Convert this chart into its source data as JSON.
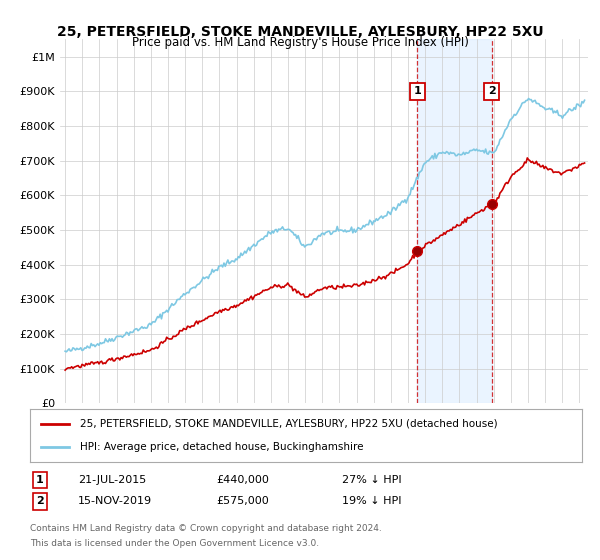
{
  "title": "25, PETERSFIELD, STOKE MANDEVILLE, AYLESBURY, HP22 5XU",
  "subtitle": "Price paid vs. HM Land Registry's House Price Index (HPI)",
  "ylabel_ticks": [
    "£0",
    "£100K",
    "£200K",
    "£300K",
    "£400K",
    "£500K",
    "£600K",
    "£700K",
    "£800K",
    "£900K",
    "£1M"
  ],
  "ytick_vals": [
    0,
    100000,
    200000,
    300000,
    400000,
    500000,
    600000,
    700000,
    800000,
    900000,
    1000000
  ],
  "ylim": [
    0,
    1050000
  ],
  "xlim_start": 1994.7,
  "xlim_end": 2025.5,
  "transaction1_date": 2015.55,
  "transaction1_price": 440000,
  "transaction2_date": 2019.88,
  "transaction2_price": 575000,
  "hpi_color": "#7ec8e3",
  "property_color": "#cc0000",
  "shade_color": "#ddeeff",
  "legend_entry1": "25, PETERSFIELD, STOKE MANDEVILLE, AYLESBURY, HP22 5XU (detached house)",
  "legend_entry2": "HPI: Average price, detached house, Buckinghamshire",
  "ann1_label": "1",
  "ann1_date": "21-JUL-2015",
  "ann1_price": "£440,000",
  "ann1_pct": "27% ↓ HPI",
  "ann2_label": "2",
  "ann2_date": "15-NOV-2019",
  "ann2_price": "£575,000",
  "ann2_pct": "19% ↓ HPI",
  "footer_line1": "Contains HM Land Registry data © Crown copyright and database right 2024.",
  "footer_line2": "This data is licensed under the Open Government Licence v3.0.",
  "background_color": "#ffffff",
  "grid_color": "#cccccc"
}
